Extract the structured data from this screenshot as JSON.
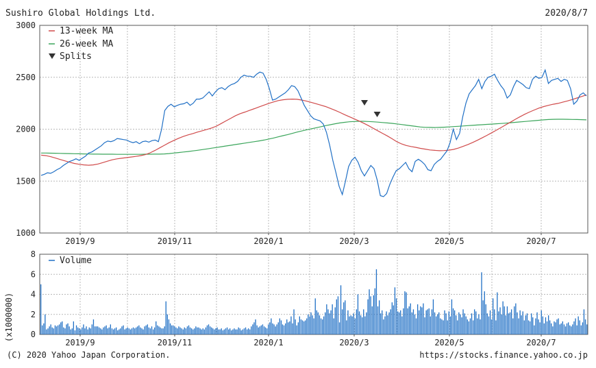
{
  "header": {
    "company": "Sushiro Global Holdings Ltd.",
    "date": "2020/8/7"
  },
  "footer": {
    "copyright": "(C) 2020 Yahoo Japan Corporation.",
    "url": "https://stocks.finance.yahoo.co.jp"
  },
  "colors": {
    "price": "#1f6fc5",
    "ma13": "#d04a4a",
    "ma26": "#3aa55a",
    "volume": "#1f6fc5",
    "grid": "#b8b8b8",
    "marker": "#333333"
  },
  "chart_data": [
    {
      "type": "line",
      "ylim": [
        1000,
        3000
      ],
      "y_ticks": [
        "3000",
        "2500",
        "2000",
        "1500",
        "1000"
      ],
      "x_labels": [
        "2019/9",
        "2019/11",
        "2020/1",
        "2020/3",
        "2020/5",
        "2020/7"
      ],
      "legend": [
        "13-week MA",
        "26-week MA",
        "Splits"
      ],
      "grid": true,
      "legend_position": "top-left",
      "series": [
        {
          "name": "",
          "values": [
            1555,
            1565,
            1580,
            1575,
            1590,
            1610,
            1625,
            1650,
            1670,
            1690,
            1700,
            1715,
            1700,
            1720,
            1740,
            1770,
            1780,
            1800,
            1820,
            1840,
            1870,
            1885,
            1880,
            1890,
            1910,
            1905,
            1900,
            1895,
            1880,
            1870,
            1880,
            1860,
            1880,
            1885,
            1875,
            1890,
            1895,
            1880,
            2000,
            2180,
            2220,
            2240,
            2215,
            2230,
            2240,
            2245,
            2260,
            2230,
            2250,
            2290,
            2290,
            2300,
            2330,
            2360,
            2320,
            2360,
            2390,
            2400,
            2380,
            2410,
            2430,
            2440,
            2460,
            2500,
            2520,
            2510,
            2510,
            2500,
            2530,
            2550,
            2540,
            2480,
            2390,
            2280,
            2290,
            2310,
            2330,
            2350,
            2380,
            2420,
            2410,
            2370,
            2300,
            2230,
            2180,
            2130,
            2100,
            2090,
            2080,
            2050,
            1970,
            1850,
            1700,
            1580,
            1450,
            1370,
            1500,
            1640,
            1700,
            1730,
            1680,
            1600,
            1550,
            1600,
            1650,
            1620,
            1510,
            1360,
            1350,
            1380,
            1470,
            1540,
            1600,
            1620,
            1650,
            1680,
            1620,
            1590,
            1690,
            1710,
            1690,
            1660,
            1610,
            1600,
            1660,
            1690,
            1710,
            1750,
            1790,
            1870,
            2000,
            1900,
            1960,
            2120,
            2250,
            2340,
            2380,
            2420,
            2480,
            2390,
            2460,
            2500,
            2510,
            2530,
            2470,
            2420,
            2380,
            2300,
            2330,
            2410,
            2470,
            2450,
            2430,
            2400,
            2390,
            2480,
            2510,
            2490,
            2500,
            2570,
            2440,
            2470,
            2480,
            2490,
            2460,
            2480,
            2470,
            2390,
            2240,
            2270,
            2330,
            2350,
            2320
          ],
          "marker_indices": [
            102,
            106
          ]
        },
        {
          "name": "13-week MA",
          "values": [
            1750,
            1745,
            1735,
            1722,
            1708,
            1695,
            1682,
            1670,
            1662,
            1656,
            1653,
            1656,
            1665,
            1678,
            1692,
            1705,
            1714,
            1720,
            1726,
            1732,
            1738,
            1745,
            1755,
            1772,
            1795,
            1820,
            1845,
            1870,
            1892,
            1912,
            1930,
            1945,
            1958,
            1972,
            1985,
            1998,
            2012,
            2030,
            2055,
            2080,
            2105,
            2130,
            2150,
            2165,
            2182,
            2198,
            2215,
            2232,
            2248,
            2262,
            2275,
            2283,
            2288,
            2290,
            2288,
            2280,
            2270,
            2258,
            2245,
            2232,
            2218,
            2200,
            2182,
            2162,
            2140,
            2120,
            2100,
            2080,
            2058,
            2035,
            2010,
            1985,
            1960,
            1935,
            1908,
            1880,
            1858,
            1843,
            1833,
            1825,
            1815,
            1808,
            1800,
            1796,
            1793,
            1794,
            1798,
            1805,
            1818,
            1834,
            1852,
            1872,
            1893,
            1916,
            1940,
            1965,
            1990,
            2016,
            2042,
            2068,
            2095,
            2120,
            2144,
            2165,
            2185,
            2203,
            2218,
            2230,
            2240,
            2248,
            2260,
            2272,
            2285,
            2300,
            2315,
            2330
          ]
        },
        {
          "name": "26-week MA",
          "values": [
            1770,
            1770,
            1769,
            1768,
            1767,
            1766,
            1765,
            1764,
            1763,
            1762,
            1761,
            1760,
            1760,
            1759,
            1759,
            1759,
            1758,
            1758,
            1758,
            1758,
            1758,
            1758,
            1759,
            1759,
            1760,
            1760,
            1762,
            1765,
            1770,
            1775,
            1780,
            1785,
            1791,
            1797,
            1803,
            1810,
            1817,
            1824,
            1831,
            1838,
            1845,
            1852,
            1859,
            1866,
            1873,
            1880,
            1887,
            1895,
            1905,
            1915,
            1926,
            1937,
            1948,
            1960,
            1972,
            1983,
            1994,
            2004,
            2014,
            2024,
            2034,
            2043,
            2052,
            2060,
            2066,
            2071,
            2074,
            2076,
            2076,
            2074,
            2071,
            2068,
            2064,
            2060,
            2056,
            2051,
            2045,
            2039,
            2033,
            2027,
            2021,
            2018,
            2017,
            2016,
            2017,
            2019,
            2022,
            2025,
            2028,
            2031,
            2034,
            2037,
            2040,
            2043,
            2046,
            2049,
            2052,
            2055,
            2058,
            2062,
            2066,
            2070,
            2074,
            2078,
            2082,
            2086,
            2090,
            2093,
            2095,
            2096,
            2096,
            2095,
            2094,
            2093,
            2092,
            2090
          ]
        }
      ]
    },
    {
      "type": "bar",
      "ylim": [
        0,
        8
      ],
      "y_ticks": [
        "8",
        "6",
        "4",
        "2",
        "0"
      ],
      "ylabel": "(x1000000)",
      "x_labels": [
        "2019/9",
        "2019/11",
        "2020/1",
        "2020/3",
        "2020/5",
        "2020/7"
      ],
      "legend": [
        "Volume"
      ],
      "grid": true,
      "series": [
        {
          "name": "Volume",
          "values": [
            5.0,
            0.9,
            1.1,
            2.0,
            0.5,
            0.6,
            0.8,
            1.0,
            0.7,
            0.6,
            0.9,
            0.8,
            0.9,
            1.0,
            1.2,
            1.3,
            0.7,
            0.6,
            1.0,
            1.1,
            0.8,
            0.5,
            0.6,
            1.3,
            0.4,
            0.9,
            0.7,
            0.6,
            0.5,
            0.7,
            1.0,
            0.6,
            0.8,
            0.5,
            0.7,
            0.6,
            1.0,
            1.5,
            0.8,
            0.8,
            0.8,
            0.7,
            0.6,
            0.5,
            0.7,
            0.8,
            0.9,
            0.6,
            0.7,
            1.0,
            0.6,
            0.5,
            0.6,
            0.7,
            0.4,
            0.5,
            0.6,
            0.8,
            0.9,
            0.5,
            0.6,
            0.7,
            0.6,
            0.5,
            0.6,
            0.7,
            0.6,
            0.7,
            0.8,
            0.9,
            0.7,
            0.6,
            0.5,
            0.8,
            0.9,
            1.0,
            0.7,
            0.6,
            0.8,
            0.5,
            0.7,
            1.3,
            0.9,
            0.8,
            0.7,
            0.6,
            0.6,
            0.8,
            3.3,
            2.0,
            1.5,
            1.1,
            0.9,
            0.9,
            0.8,
            0.7,
            0.6,
            0.8,
            0.7,
            0.6,
            0.5,
            0.7,
            0.6,
            0.8,
            0.9,
            0.7,
            0.6,
            0.5,
            0.6,
            0.8,
            0.7,
            0.7,
            0.6,
            0.5,
            0.6,
            0.5,
            0.7,
            0.9,
            1.0,
            0.8,
            0.7,
            0.6,
            0.5,
            0.6,
            0.7,
            0.5,
            0.5,
            0.6,
            0.4,
            0.5,
            0.6,
            0.7,
            0.5,
            0.6,
            0.4,
            0.5,
            0.6,
            0.5,
            0.5,
            0.7,
            0.6,
            0.4,
            0.5,
            0.6,
            0.7,
            0.5,
            0.6,
            0.5,
            0.8,
            1.0,
            1.2,
            1.5,
            0.9,
            0.7,
            0.8,
            0.9,
            1.0,
            0.8,
            0.7,
            0.6,
            1.0,
            1.2,
            1.6,
            1.1,
            1.0,
            0.8,
            1.0,
            1.2,
            1.6,
            1.4,
            1.0,
            0.9,
            1.1,
            1.5,
            1.2,
            1.3,
            1.8,
            1.1,
            2.5,
            1.5,
            0.9,
            1.2,
            1.8,
            1.5,
            1.4,
            1.3,
            1.4,
            1.6,
            2.0,
            1.8,
            2.2,
            1.9,
            1.6,
            3.6,
            2.4,
            2.2,
            1.9,
            1.6,
            1.5,
            1.8,
            2.2,
            3.0,
            2.5,
            2.1,
            2.4,
            3.0,
            1.6,
            2.7,
            3.5,
            3.8,
            1.2,
            4.9,
            2.5,
            3.2,
            3.4,
            1.4,
            2.4,
            1.8,
            1.9,
            1.8,
            2.1,
            1.6,
            2.5,
            4.0,
            2.3,
            1.9,
            1.7,
            2.5,
            1.8,
            2.2,
            3.5,
            4.5,
            3.8,
            2.8,
            3.9,
            4.6,
            6.5,
            2.8,
            3.4,
            2.1,
            2.4,
            1.5,
            1.8,
            2.3,
            1.9,
            2.2,
            2.5,
            3.2,
            2.9,
            4.7,
            3.6,
            2.3,
            2.2,
            2.4,
            1.8,
            2.6,
            4.3,
            4.2,
            2.6,
            2.8,
            3.1,
            2.2,
            2.5,
            2.0,
            1.6,
            3.0,
            2.4,
            2.8,
            2.7,
            3.1,
            1.7,
            2.4,
            2.5,
            2.6,
            1.8,
            2.5,
            3.5,
            2.2,
            1.8,
            2.0,
            2.2,
            1.6,
            1.5,
            1.4,
            2.4,
            2.1,
            1.4,
            2.3,
            1.8,
            3.5,
            2.6,
            2.4,
            1.9,
            1.4,
            2.2,
            2.0,
            1.7,
            2.5,
            2.1,
            1.8,
            1.5,
            1.3,
            1.6,
            2.1,
            1.4,
            2.5,
            2.3,
            1.6,
            2.0,
            1.5,
            6.2,
            3.4,
            4.3,
            3.0,
            2.1,
            1.8,
            2.4,
            1.5,
            3.6,
            2.5,
            1.4,
            4.2,
            2.3,
            2.7,
            2.0,
            3.3,
            2.8,
            1.9,
            2.8,
            2.1,
            2.2,
            2.5,
            1.6,
            2.8,
            3.1,
            2.2,
            1.6,
            2.4,
            1.9,
            2.3,
            1.4,
            1.9,
            2.1,
            1.4,
            1.3,
            2.1,
            1.7,
            0.9,
            1.6,
            2.2,
            1.5,
            1.2,
            2.4,
            1.8,
            1.1,
            1.7,
            1.3,
            1.9,
            1.4,
            1.1,
            0.8,
            1.3,
            1.2,
            1.5,
            1.6,
            1.0,
            1.1,
            1.3,
            1.0,
            0.8,
            1.1,
            1.2,
            0.9,
            0.8,
            1.0,
            1.3,
            1.6,
            0.9,
            1.8,
            1.4,
            0.9,
            1.2,
            2.5,
            1.5,
            1.0
          ]
        }
      ]
    }
  ]
}
